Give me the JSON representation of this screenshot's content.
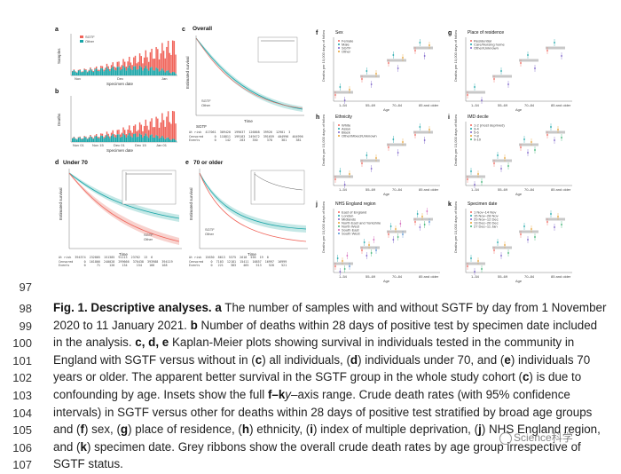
{
  "figure": {
    "panels": {
      "a": {
        "label": "a",
        "ylabel": "Samples",
        "xlabel": "Specimen date",
        "legend": [
          "SGTF",
          "Other"
        ],
        "ticks": [
          "Nov",
          "Dec",
          "Jan"
        ]
      },
      "b": {
        "label": "b",
        "ylabel": "Deaths",
        "xlabel": "Specimen date",
        "ticks": [
          "Nov 01",
          "Nov 15",
          "Dec 01",
          "Dec 15",
          "Jan 01"
        ]
      },
      "c": {
        "label": "c",
        "title": "Overall",
        "ylabel": "Estimated survival",
        "xlabel": "Time",
        "legend": [
          "SGTF",
          "Other"
        ],
        "table_title": "SGTF"
      },
      "d": {
        "label": "d",
        "title": "Under 70",
        "ylabel": "Estimated survival",
        "xlabel": "Time",
        "legend": [
          "SGTF",
          "Other"
        ]
      },
      "e": {
        "label": "e",
        "title": "70 or older",
        "ylabel": "Estimated survival",
        "xlabel": "Time",
        "legend": [
          "SGTF",
          "Other"
        ]
      },
      "f": {
        "label": "f",
        "title": "Sex",
        "legend": [
          "Female",
          "Male",
          "SGTF",
          "Other"
        ],
        "xlabel": "Age",
        "ylabel": "Deaths per 10,000 days of followup",
        "xticks": [
          "1–54",
          "55–69",
          "70–84",
          "85 and older"
        ]
      },
      "g": {
        "label": "g",
        "title": "Place of residence",
        "legend": [
          "Residential",
          "Care/Nursing home",
          "Other/Unknown"
        ],
        "xlabel": "Age",
        "ylabel": "Deaths per 10,000 days of followup",
        "xticks": [
          "1–54",
          "55–69",
          "70–84",
          "85 and older"
        ]
      },
      "h": {
        "label": "h",
        "title": "Ethnicity",
        "legend": [
          "White",
          "Asian",
          "Black",
          "Other/Mixed/Unknown"
        ],
        "xlabel": "Age",
        "ylabel": "Deaths per 10,000 days of followup",
        "xticks": [
          "1–54",
          "55–69",
          "70–84",
          "85 and older"
        ]
      },
      "i": {
        "label": "i",
        "title": "IMD decile",
        "legend": [
          "1-2 (most deprived)",
          "3-4",
          "5-6",
          "7-8",
          "9-10"
        ],
        "xlabel": "Age",
        "ylabel": "Deaths per 10,000 days of followup",
        "xticks": [
          "1–54",
          "55–69",
          "70–84",
          "85 and older"
        ]
      },
      "j": {
        "label": "j",
        "title": "NHS England region",
        "legend": [
          "East of England",
          "London",
          "Midlands",
          "North East and Yorkshire",
          "North West",
          "South East",
          "South West"
        ],
        "xlabel": "Age",
        "ylabel": "Deaths per 10,000 days of followup",
        "xticks": [
          "1–54",
          "55–69",
          "70–84",
          "85 and older"
        ]
      },
      "k": {
        "label": "k",
        "title": "Specimen date",
        "legend": [
          "1 Nov–14 Nov",
          "15 Nov–28 Nov",
          "29 Nov–12 Dec",
          "13 Dec–26 Dec",
          "27 Dec–11 Jan"
        ],
        "xlabel": "Age",
        "ylabel": "Deaths per 10,000 days of followup",
        "xticks": [
          "1–54",
          "55–69",
          "70–84",
          "85 and older"
        ]
      }
    },
    "colors": {
      "sgtf": "#f0645a",
      "other": "#19a5a8",
      "grey": "#bdbdbd"
    }
  },
  "caption": {
    "blank_line": "97",
    "lines": [
      {
        "num": "98",
        "bold": "Fig. 1. Descriptive analyses. a",
        "text": " The number of samples with and without SGTF by day from 1 November"
      },
      {
        "num": "99",
        "text": "2020 to 11 January 2021. ",
        "bold2": "b",
        "text2": " Number of deaths within 28 days of positive test by specimen date included"
      },
      {
        "num": "100",
        "text": "in the analysis. ",
        "bold2": "c, d, e",
        "text2": " Kaplan-Meier plots showing survival in individuals tested in the community in"
      },
      {
        "num": "101",
        "text": "England with SGTF versus without in (",
        "bold2": "c",
        "text2": ") all individuals, (",
        "bold3": "d",
        "text3": ") individuals under 70, and (",
        "bold4": "e",
        "text4": ") individuals 70"
      },
      {
        "num": "102",
        "text": "years or older. The apparent better survival in the SGTF group in the whole study cohort (",
        "bold2": "c",
        "text2": ") is due to"
      },
      {
        "num": "103",
        "text": "confounding by age. Insets show the full ",
        "italic": "y",
        "text2": "–axis range. ",
        "bold2": "f–k",
        "text3": " Crude death rates (with 95% confidence"
      },
      {
        "num": "104",
        "text": "intervals) in SGTF versus other for deaths within 28 days of positive test stratified by broad age groups"
      },
      {
        "num": "105",
        "text": "and (",
        "bold2": "f",
        "text2": ") sex, (",
        "bold3": "g",
        "text3": ") place of residence, (",
        "bold4": "h",
        "text4": ") ethnicity, (",
        "bold5": "i",
        "text5": ") index of multiple deprivation, (",
        "bold6": "j",
        "text6": ") NHS England region,"
      },
      {
        "num": "106",
        "text": "and (",
        "bold2": "k",
        "text2": ") specimen date. Grey ribbons show the overall crude death rates by age group irrespective of"
      },
      {
        "num": "107",
        "text": "SGTF status."
      }
    ]
  },
  "watermark": {
    "text": "Science科学"
  }
}
